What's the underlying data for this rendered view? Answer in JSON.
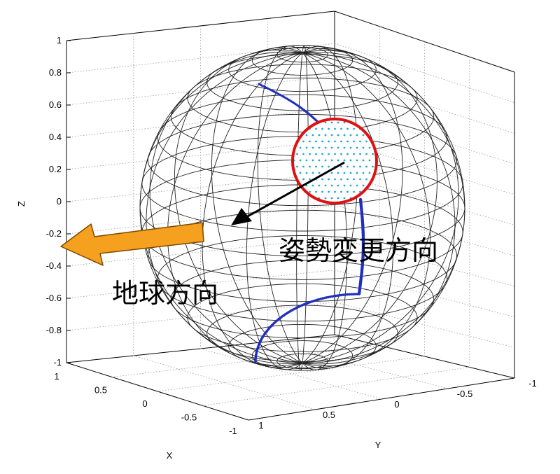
{
  "chart_data": {
    "type": "scatter",
    "projection": "3d",
    "title": "",
    "axes": {
      "x": {
        "label": "X",
        "ticks": [
          "1",
          "0.5",
          "0",
          "-0.5",
          "-1"
        ],
        "range": [
          -1,
          1
        ],
        "reversed": true
      },
      "y": {
        "label": "Y",
        "ticks": [
          "1",
          "0.5",
          "0",
          "-0.5",
          "-1"
        ],
        "range": [
          -1,
          1
        ],
        "reversed": true
      },
      "z": {
        "label": "Z",
        "ticks": [
          "1",
          "0.8",
          "0.6",
          "0.4",
          "0.2",
          "0",
          "-0.2",
          "-0.4",
          "-0.6",
          "-0.8",
          "-1"
        ],
        "range": [
          -1,
          1
        ]
      }
    },
    "grid": true,
    "surface": {
      "shape": "unit sphere wireframe",
      "color": "#000000"
    },
    "series": [
      {
        "marker": "dots",
        "color": "#1f2fbf",
        "path": "trajectory arc on sphere surface"
      },
      {
        "marker": "dots",
        "color": "#22a8d8",
        "region": "filled disk inside red circle"
      }
    ],
    "highlight_circle_color": "#e01010",
    "arrow_colors": {
      "black_arrow": "#000000",
      "orange_arrow": "#f5a01e"
    },
    "annotations": [
      "姿勢変更方向",
      "地球方向"
    ]
  },
  "labels": {
    "attitude_change_direction": "姿勢変更方向",
    "earth_direction": "地球方向"
  }
}
